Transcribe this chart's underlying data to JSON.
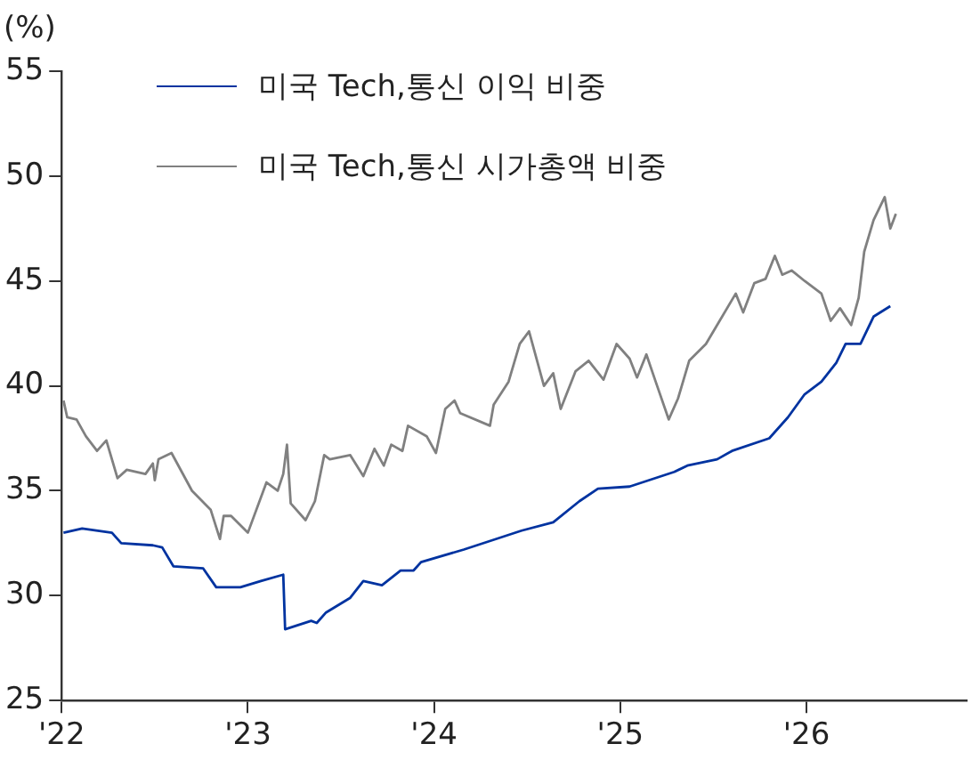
{
  "chart_data": {
    "type": "line",
    "ylabel": "(%)",
    "legend": "top left",
    "grid": false,
    "marker": "none",
    "line_style": "solid",
    "xlim": [
      2022,
      2026.86
    ],
    "xticks": [
      {
        "value": 2022,
        "label": "'22"
      },
      {
        "value": 2023,
        "label": "'23"
      },
      {
        "value": 2024,
        "label": "'24"
      },
      {
        "value": 2025,
        "label": "'25"
      },
      {
        "value": 2026,
        "label": "'26"
      }
    ],
    "ylim": [
      25,
      55
    ],
    "yticks": [
      25,
      30,
      35,
      40,
      45,
      50,
      55
    ],
    "series": [
      {
        "name": "미국 Tech,통신 이익 비중",
        "color": "#0033a0",
        "x": [
          2022.01,
          2022.11,
          2022.27,
          2022.32,
          2022.49,
          2022.54,
          2022.6,
          2022.76,
          2022.83,
          2022.96,
          2023.07,
          2023.19,
          2023.2,
          2023.34,
          2023.37,
          2023.42,
          2023.55,
          2023.62,
          2023.72,
          2023.82,
          2023.89,
          2023.93,
          2024.16,
          2024.47,
          2024.64,
          2024.78,
          2024.88,
          2025.05,
          2025.29,
          2025.36,
          2025.52,
          2025.6,
          2025.8,
          2025.9,
          2025.99,
          2026.08,
          2026.16,
          2026.21,
          2026.29,
          2026.36,
          2026.45
        ],
        "values": [
          33.0,
          33.2,
          33.0,
          32.5,
          32.4,
          32.3,
          31.4,
          31.3,
          30.4,
          30.4,
          30.7,
          31.0,
          28.4,
          28.8,
          28.7,
          29.2,
          29.9,
          30.7,
          30.5,
          31.2,
          31.2,
          31.6,
          32.2,
          33.1,
          33.5,
          34.5,
          35.1,
          35.2,
          35.9,
          36.2,
          36.5,
          36.9,
          37.5,
          38.5,
          39.6,
          40.2,
          41.1,
          42.0,
          42.0,
          43.3,
          43.8
        ]
      },
      {
        "name": "미국 Tech,통신 시가총액 비중",
        "color": "#808080",
        "x": [
          2022.01,
          2022.03,
          2022.08,
          2022.13,
          2022.19,
          2022.24,
          2022.3,
          2022.35,
          2022.45,
          2022.49,
          2022.5,
          2022.52,
          2022.59,
          2022.7,
          2022.8,
          2022.85,
          2022.87,
          2022.91,
          2023.0,
          2023.1,
          2023.16,
          2023.19,
          2023.21,
          2023.23,
          2023.31,
          2023.36,
          2023.41,
          2023.44,
          2023.55,
          2023.62,
          2023.68,
          2023.73,
          2023.77,
          2023.83,
          2023.86,
          2023.96,
          2024.01,
          2024.06,
          2024.11,
          2024.14,
          2024.3,
          2024.32,
          2024.4,
          2024.46,
          2024.51,
          2024.59,
          2024.64,
          2024.68,
          2024.76,
          2024.83,
          2024.91,
          2024.98,
          2025.05,
          2025.09,
          2025.14,
          2025.19,
          2025.26,
          2025.31,
          2025.37,
          2025.46,
          2025.52,
          2025.62,
          2025.66,
          2025.72,
          2025.78,
          2025.83,
          2025.87,
          2025.92,
          2025.99,
          2026.08,
          2026.13,
          2026.18,
          2026.24,
          2026.28,
          2026.31,
          2026.36,
          2026.42,
          2026.45,
          2026.48
        ],
        "values": [
          39.3,
          38.5,
          38.4,
          37.6,
          36.9,
          37.4,
          35.6,
          36.0,
          35.8,
          36.3,
          35.5,
          36.5,
          36.8,
          35.0,
          34.1,
          32.7,
          33.8,
          33.8,
          33.0,
          35.4,
          35.0,
          35.8,
          37.2,
          34.4,
          33.6,
          34.5,
          36.7,
          36.5,
          36.7,
          35.7,
          37.0,
          36.2,
          37.2,
          36.9,
          38.1,
          37.6,
          36.8,
          38.9,
          39.3,
          38.7,
          38.1,
          39.1,
          40.2,
          42.0,
          42.6,
          40.0,
          40.6,
          38.9,
          40.7,
          41.2,
          40.3,
          42.0,
          41.3,
          40.4,
          41.5,
          40.2,
          38.4,
          39.4,
          41.2,
          42.0,
          42.9,
          44.4,
          43.5,
          44.9,
          45.1,
          46.2,
          45.3,
          45.5,
          45.0,
          44.4,
          43.1,
          43.7,
          42.9,
          44.2,
          46.4,
          47.9,
          49.0,
          47.5,
          48.2
        ]
      }
    ]
  }
}
